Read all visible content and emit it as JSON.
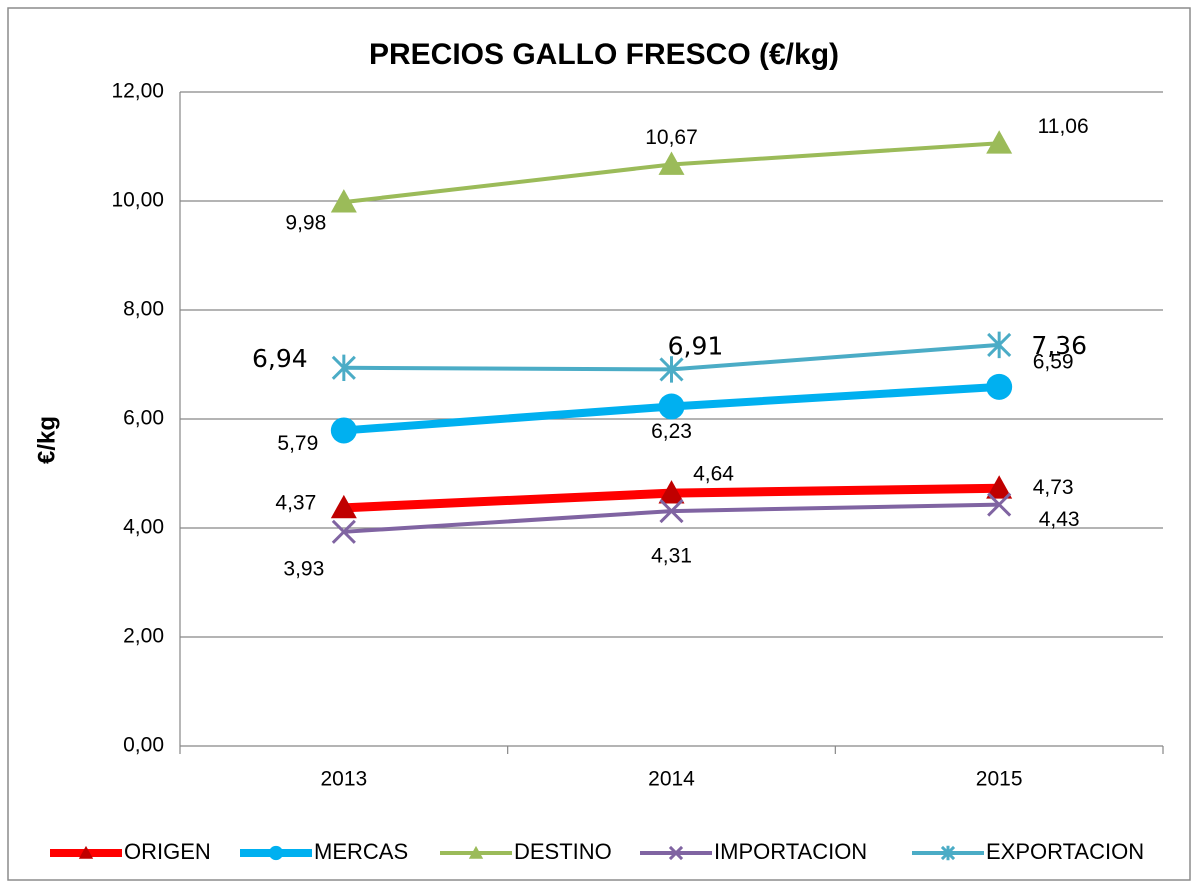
{
  "chart_data": {
    "type": "line",
    "title": "PRECIOS  GALLO FRESCO (€/kg)",
    "y_label": "€/kg",
    "categories": [
      "2013",
      "2014",
      "2015"
    ],
    "series": [
      {
        "name": "ORIGEN",
        "color": "#ff0000",
        "marker_color": "#c00000",
        "marker": "triangle",
        "width": 9,
        "values": [
          4.37,
          4.64,
          4.73
        ],
        "value_labels": [
          "4,37",
          "4,64",
          "4,73"
        ]
      },
      {
        "name": "MERCAS",
        "color": "#00b0f0",
        "marker_color": "#00b0f0",
        "marker": "circle",
        "width": 8,
        "values": [
          5.79,
          6.23,
          6.59
        ],
        "value_labels": [
          "5,79",
          "6,23",
          "6,59"
        ]
      },
      {
        "name": "DESTINO",
        "color": "#9bbb59",
        "marker_color": "#9bbb59",
        "marker": "triangle",
        "width": 4,
        "values": [
          9.98,
          10.67,
          11.06
        ],
        "value_labels": [
          "9,98",
          "10,67",
          "11,06"
        ]
      },
      {
        "name": "IMPORTACION",
        "color": "#8064a2",
        "marker_color": "#8064a2",
        "marker": "x",
        "width": 4,
        "values": [
          3.93,
          4.31,
          4.43
        ],
        "value_labels": [
          "3,93",
          "4,31",
          "4,43"
        ]
      },
      {
        "name": "EXPORTACION",
        "color": "#4bacc6",
        "marker_color": "#4bacc6",
        "marker": "star",
        "width": 4,
        "values": [
          6.94,
          6.91,
          7.36
        ],
        "value_labels": [
          "6,94",
          "6,91",
          "7,36"
        ]
      }
    ],
    "ylim": [
      0,
      12
    ],
    "yticks": [
      {
        "value": 0,
        "label": "0,00"
      },
      {
        "value": 2,
        "label": "2,00"
      },
      {
        "value": 4,
        "label": "4,00"
      },
      {
        "value": 6,
        "label": "6,00"
      },
      {
        "value": 8,
        "label": "8,00"
      },
      {
        "value": 10,
        "label": "10,00"
      },
      {
        "value": 12,
        "label": "12,00"
      }
    ],
    "grid": true,
    "legend": "bottom"
  }
}
